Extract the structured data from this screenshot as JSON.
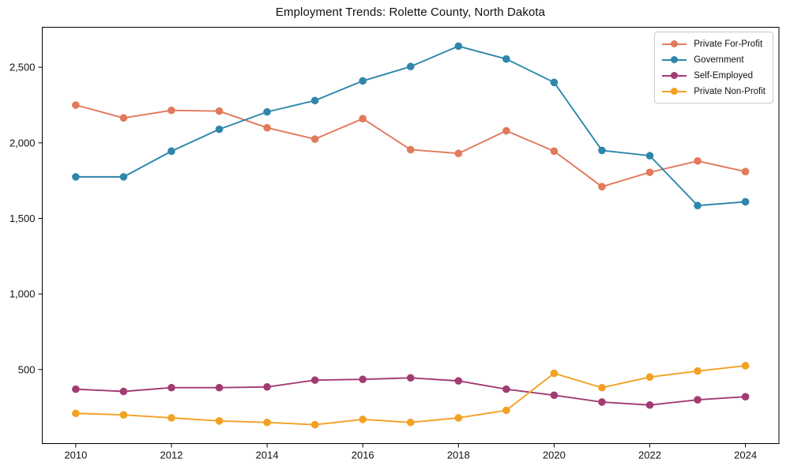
{
  "title": "Employment Trends: Rolette County, North Dakota",
  "colors": {
    "background": "#ffffff",
    "axis": "#000000",
    "tick_text": "#111111",
    "legend_border": "#c9c9c9",
    "legend_background": "#ffffff"
  },
  "chart_data": {
    "type": "line",
    "title": "Employment Trends: Rolette County, North Dakota",
    "xlabel": "",
    "ylabel": "",
    "grid": false,
    "legend_position": "upper-right",
    "marker": "circle",
    "x": [
      2010,
      2011,
      2012,
      2013,
      2014,
      2015,
      2016,
      2017,
      2018,
      2019,
      2020,
      2021,
      2022,
      2023,
      2024
    ],
    "x_ticks": [
      2010,
      2012,
      2014,
      2016,
      2018,
      2020,
      2022,
      2024
    ],
    "y_ticks": [
      500,
      1000,
      1500,
      2000,
      2500
    ],
    "xlim": [
      2009.3,
      2024.7
    ],
    "ylim": [
      10,
      2765
    ],
    "series": [
      {
        "name": "Private For-Profit",
        "color": "#E2795B",
        "values": [
          2250,
          2165,
          2215,
          2210,
          2100,
          2025,
          2160,
          1955,
          1930,
          2080,
          1945,
          1710,
          1805,
          1880,
          1810
        ]
      },
      {
        "name": "Government",
        "color": "#2E86AB",
        "values": [
          1775,
          1775,
          1945,
          2090,
          2205,
          2280,
          2410,
          2505,
          2640,
          2555,
          2400,
          1950,
          1915,
          1585,
          1610
        ]
      },
      {
        "name": "Self-Employed",
        "color": "#A23B72",
        "values": [
          370,
          355,
          380,
          380,
          385,
          430,
          435,
          445,
          425,
          370,
          330,
          285,
          265,
          300,
          320
        ]
      },
      {
        "name": "Private Non-Profit",
        "color": "#F2A123",
        "values": [
          210,
          200,
          180,
          160,
          150,
          135,
          170,
          150,
          180,
          230,
          475,
          380,
          450,
          490,
          525
        ]
      }
    ]
  }
}
